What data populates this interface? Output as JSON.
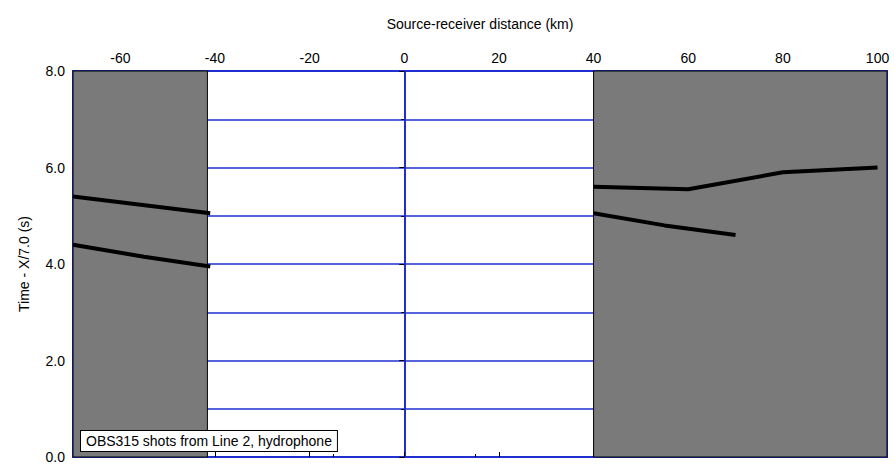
{
  "chart_data": {
    "type": "line",
    "annotation": "OBS315 shots from Line 2, hydrophone",
    "xlabel": "Source-receiver distance (km)",
    "ylabel": "Time - X/7.0 (s)",
    "xlim": [
      -70,
      102
    ],
    "xticks": [
      -60,
      -40,
      -20,
      0,
      20,
      40,
      60,
      80,
      100
    ],
    "ylim": [
      0,
      8
    ],
    "yticks": [
      {
        "value": 0,
        "label": "0.0"
      },
      {
        "value": 2,
        "label": "2.0"
      },
      {
        "value": 4,
        "label": "4.0"
      },
      {
        "value": 6,
        "label": "6.0"
      },
      {
        "value": 8,
        "label": "8.0"
      }
    ],
    "grid": true,
    "coverage": [
      [
        -70,
        -41.6
      ],
      [
        40,
        102
      ]
    ],
    "series": [
      {
        "color": "#000000",
        "x": [
          -70,
          -55,
          -41
        ],
        "values": [
          4.4,
          4.15,
          3.95
        ]
      },
      {
        "color": "#000000",
        "x": [
          -70,
          -41
        ],
        "values": [
          5.4,
          5.05
        ]
      },
      {
        "color": "#000000",
        "x": [
          40,
          55,
          70
        ],
        "values": [
          5.05,
          4.8,
          4.6
        ]
      },
      {
        "color": "#000000",
        "x": [
          40,
          60,
          80,
          100
        ],
        "values": [
          5.6,
          5.55,
          5.9,
          6.0
        ]
      }
    ]
  }
}
